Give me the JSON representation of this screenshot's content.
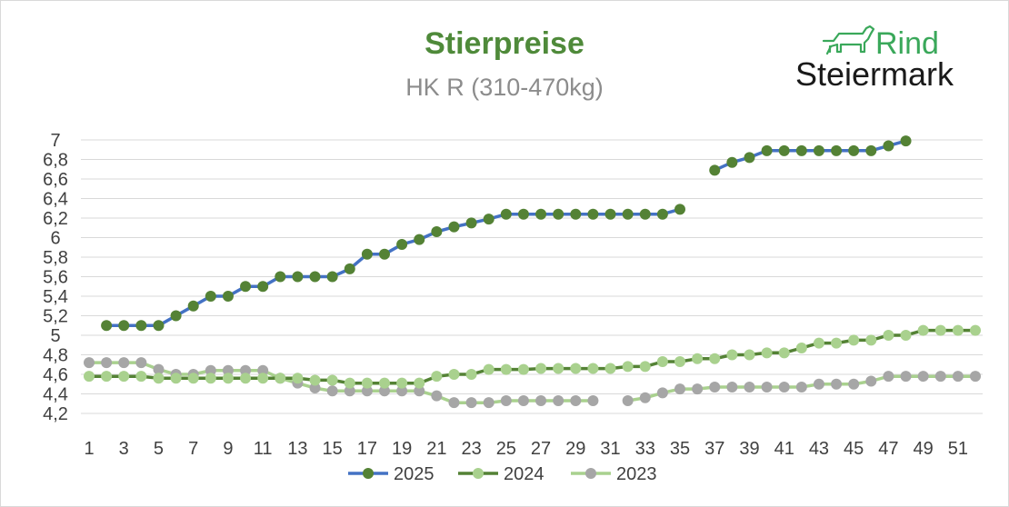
{
  "logo": {
    "line1": "Rind",
    "line2": "Steiermark",
    "icon": "cow-icon",
    "color": "#3aa85a"
  },
  "chart_data": {
    "type": "line",
    "title": "Stierpreise",
    "subtitle": "HK R (310-470kg)",
    "xlabel": "",
    "ylabel": "",
    "ylim": [
      4.2,
      7.0
    ],
    "xlim": [
      1,
      52
    ],
    "y_ticks": [
      "7",
      "6,8",
      "6,6",
      "6,4",
      "6,2",
      "6",
      "5,8",
      "5,6",
      "5,4",
      "5,2",
      "5",
      "4,8",
      "4,6",
      "4,4",
      "4,2"
    ],
    "y_tick_values": [
      7.0,
      6.8,
      6.6,
      6.4,
      6.2,
      6.0,
      5.8,
      5.6,
      5.4,
      5.2,
      5.0,
      4.8,
      4.6,
      4.4,
      4.2
    ],
    "x_ticks": [
      "1",
      "3",
      "5",
      "7",
      "9",
      "11",
      "13",
      "15",
      "17",
      "19",
      "21",
      "23",
      "25",
      "27",
      "29",
      "31",
      "33",
      "35",
      "37",
      "39",
      "41",
      "43",
      "45",
      "47",
      "49",
      "51"
    ],
    "x_tick_values": [
      1,
      3,
      5,
      7,
      9,
      11,
      13,
      15,
      17,
      19,
      21,
      23,
      25,
      27,
      29,
      31,
      33,
      35,
      37,
      39,
      41,
      43,
      45,
      47,
      49,
      51
    ],
    "grid": true,
    "legend_position": "bottom",
    "series": [
      {
        "name": "2025",
        "line_color": "#4472c4",
        "marker_color": "#548235",
        "points": [
          [
            2,
            5.1
          ],
          [
            3,
            5.1
          ],
          [
            4,
            5.1
          ],
          [
            5,
            5.1
          ],
          [
            6,
            5.2
          ],
          [
            7,
            5.3
          ],
          [
            8,
            5.4
          ],
          [
            9,
            5.4
          ],
          [
            10,
            5.5
          ],
          [
            11,
            5.5
          ],
          [
            12,
            5.6
          ],
          [
            13,
            5.6
          ],
          [
            14,
            5.6
          ],
          [
            15,
            5.6
          ],
          [
            16,
            5.68
          ],
          [
            17,
            5.83
          ],
          [
            18,
            5.83
          ],
          [
            19,
            5.93
          ],
          [
            20,
            5.98
          ],
          [
            21,
            6.06
          ],
          [
            22,
            6.11
          ],
          [
            23,
            6.15
          ],
          [
            24,
            6.19
          ],
          [
            25,
            6.24
          ],
          [
            26,
            6.24
          ],
          [
            27,
            6.24
          ],
          [
            28,
            6.24
          ],
          [
            29,
            6.24
          ],
          [
            30,
            6.24
          ],
          [
            31,
            6.24
          ],
          [
            32,
            6.24
          ],
          [
            33,
            6.24
          ],
          [
            34,
            6.24
          ],
          [
            35,
            6.29
          ],
          [
            37,
            6.69
          ],
          [
            38,
            6.77
          ],
          [
            39,
            6.82
          ],
          [
            40,
            6.89
          ],
          [
            41,
            6.89
          ],
          [
            42,
            6.89
          ],
          [
            43,
            6.89
          ],
          [
            44,
            6.89
          ],
          [
            45,
            6.89
          ],
          [
            46,
            6.89
          ],
          [
            47,
            6.94
          ],
          [
            48,
            6.99
          ]
        ]
      },
      {
        "name": "2024",
        "line_color": "#548235",
        "marker_color": "#a9d18e",
        "points": [
          [
            1,
            4.58
          ],
          [
            2,
            4.58
          ],
          [
            3,
            4.58
          ],
          [
            4,
            4.58
          ],
          [
            5,
            4.56
          ],
          [
            6,
            4.56
          ],
          [
            7,
            4.56
          ],
          [
            8,
            4.56
          ],
          [
            9,
            4.56
          ],
          [
            10,
            4.56
          ],
          [
            11,
            4.56
          ],
          [
            12,
            4.56
          ],
          [
            13,
            4.56
          ],
          [
            14,
            4.54
          ],
          [
            15,
            4.54
          ],
          [
            16,
            4.51
          ],
          [
            17,
            4.51
          ],
          [
            18,
            4.51
          ],
          [
            19,
            4.51
          ],
          [
            20,
            4.51
          ],
          [
            21,
            4.58
          ],
          [
            22,
            4.6
          ],
          [
            23,
            4.6
          ],
          [
            24,
            4.65
          ],
          [
            25,
            4.65
          ],
          [
            26,
            4.65
          ],
          [
            27,
            4.66
          ],
          [
            28,
            4.66
          ],
          [
            29,
            4.66
          ],
          [
            30,
            4.66
          ],
          [
            31,
            4.66
          ],
          [
            32,
            4.68
          ],
          [
            33,
            4.68
          ],
          [
            34,
            4.73
          ],
          [
            35,
            4.73
          ],
          [
            36,
            4.76
          ],
          [
            37,
            4.76
          ],
          [
            38,
            4.8
          ],
          [
            39,
            4.8
          ],
          [
            40,
            4.82
          ],
          [
            41,
            4.82
          ],
          [
            42,
            4.87
          ],
          [
            43,
            4.92
          ],
          [
            44,
            4.92
          ],
          [
            45,
            4.95
          ],
          [
            46,
            4.95
          ],
          [
            47,
            5.0
          ],
          [
            48,
            5.0
          ],
          [
            49,
            5.05
          ],
          [
            50,
            5.05
          ],
          [
            51,
            5.05
          ],
          [
            52,
            5.05
          ]
        ]
      },
      {
        "name": "2023",
        "line_color": "#a9d18e",
        "marker_color": "#a6a6a6",
        "points": [
          [
            1,
            4.72
          ],
          [
            2,
            4.72
          ],
          [
            3,
            4.72
          ],
          [
            4,
            4.72
          ],
          [
            5,
            4.65
          ],
          [
            6,
            4.6
          ],
          [
            7,
            4.6
          ],
          [
            8,
            4.64
          ],
          [
            9,
            4.64
          ],
          [
            10,
            4.64
          ],
          [
            11,
            4.64
          ],
          [
            12,
            4.56
          ],
          [
            13,
            4.51
          ],
          [
            14,
            4.46
          ],
          [
            15,
            4.43
          ],
          [
            16,
            4.43
          ],
          [
            17,
            4.43
          ],
          [
            18,
            4.43
          ],
          [
            19,
            4.43
          ],
          [
            20,
            4.43
          ],
          [
            21,
            4.38
          ],
          [
            22,
            4.31
          ],
          [
            23,
            4.31
          ],
          [
            24,
            4.31
          ],
          [
            25,
            4.33
          ],
          [
            26,
            4.33
          ],
          [
            27,
            4.33
          ],
          [
            28,
            4.33
          ],
          [
            29,
            4.33
          ],
          [
            30,
            4.33
          ],
          [
            32,
            4.33
          ],
          [
            33,
            4.36
          ],
          [
            34,
            4.41
          ],
          [
            35,
            4.45
          ],
          [
            36,
            4.45
          ],
          [
            37,
            4.47
          ],
          [
            38,
            4.47
          ],
          [
            39,
            4.47
          ],
          [
            40,
            4.47
          ],
          [
            41,
            4.47
          ],
          [
            42,
            4.47
          ],
          [
            43,
            4.5
          ],
          [
            44,
            4.5
          ],
          [
            45,
            4.5
          ],
          [
            46,
            4.53
          ],
          [
            47,
            4.58
          ],
          [
            48,
            4.58
          ],
          [
            49,
            4.58
          ],
          [
            50,
            4.58
          ],
          [
            51,
            4.58
          ],
          [
            52,
            4.58
          ]
        ]
      }
    ]
  }
}
